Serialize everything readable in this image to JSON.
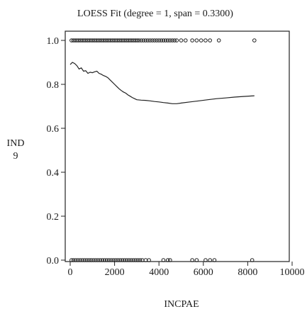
{
  "chart_data": {
    "type": "scatter",
    "title": "LOESS Fit (degree = 1, span = 0.3300)",
    "xlabel": "INCPAE",
    "ylabel_lines": [
      "IND",
      "9"
    ],
    "xlim": [
      0,
      10000
    ],
    "ylim": [
      0,
      1
    ],
    "x_ticks": [
      0,
      2000,
      4000,
      6000,
      8000,
      10000
    ],
    "x_tick_labels": [
      "0",
      "2000",
      "4000",
      "6000",
      "8000",
      "10000"
    ],
    "y_ticks": [
      0,
      0.2,
      0.4,
      0.6,
      0.8,
      1.0
    ],
    "y_tick_labels": [
      "0.0",
      "0.2",
      "0.4",
      "0.6",
      "0.8",
      "1.0"
    ],
    "grid": false,
    "series": [
      {
        "kind": "points",
        "y": 1,
        "x": [
          60,
          140,
          220,
          300,
          380,
          460,
          540,
          620,
          700,
          780,
          860,
          940,
          1020,
          1100,
          1180,
          1260,
          1340,
          1420,
          1500,
          1580,
          1660,
          1740,
          1820,
          1900,
          1980,
          2060,
          2140,
          2220,
          2300,
          2380,
          2460,
          2540,
          2620,
          2700,
          2780,
          2860,
          2940,
          3020,
          3100,
          3200,
          3300,
          3400,
          3500,
          3600,
          3700,
          3800,
          3900,
          4000,
          4100,
          4200,
          4300,
          4400,
          4500,
          4600,
          4700,
          4800,
          5000,
          5200,
          5500,
          5700,
          5900,
          6100,
          6300,
          6700,
          8300
        ]
      },
      {
        "kind": "points",
        "y": 0,
        "x": [
          60,
          150,
          250,
          350,
          450,
          550,
          650,
          750,
          850,
          950,
          1050,
          1150,
          1250,
          1350,
          1450,
          1550,
          1650,
          1750,
          1850,
          1950,
          2050,
          2150,
          2250,
          2350,
          2450,
          2550,
          2650,
          2750,
          2850,
          2950,
          3050,
          3150,
          3250,
          3400,
          3550,
          4200,
          4400,
          4500,
          5500,
          5700,
          6100,
          6300,
          6500,
          8200
        ]
      },
      {
        "kind": "line",
        "x": [
          0,
          100,
          200,
          300,
          400,
          500,
          600,
          700,
          800,
          900,
          1000,
          1100,
          1200,
          1300,
          1400,
          1500,
          1600,
          1700,
          1800,
          1900,
          2000,
          2100,
          2200,
          2300,
          2400,
          2500,
          2600,
          2700,
          2800,
          2900,
          3000,
          3200,
          3400,
          3600,
          3800,
          4000,
          4200,
          4400,
          4600,
          4800,
          5000,
          5400,
          5800,
          6200,
          6600,
          7000,
          7400,
          7800,
          8300
        ],
        "y": [
          0.89,
          0.9,
          0.895,
          0.885,
          0.87,
          0.875,
          0.86,
          0.862,
          0.85,
          0.855,
          0.853,
          0.857,
          0.86,
          0.85,
          0.846,
          0.84,
          0.836,
          0.83,
          0.82,
          0.81,
          0.8,
          0.79,
          0.78,
          0.772,
          0.765,
          0.76,
          0.752,
          0.746,
          0.74,
          0.735,
          0.73,
          0.728,
          0.727,
          0.725,
          0.722,
          0.72,
          0.717,
          0.715,
          0.712,
          0.712,
          0.715,
          0.72,
          0.725,
          0.73,
          0.735,
          0.738,
          0.742,
          0.745,
          0.748
        ]
      }
    ]
  }
}
